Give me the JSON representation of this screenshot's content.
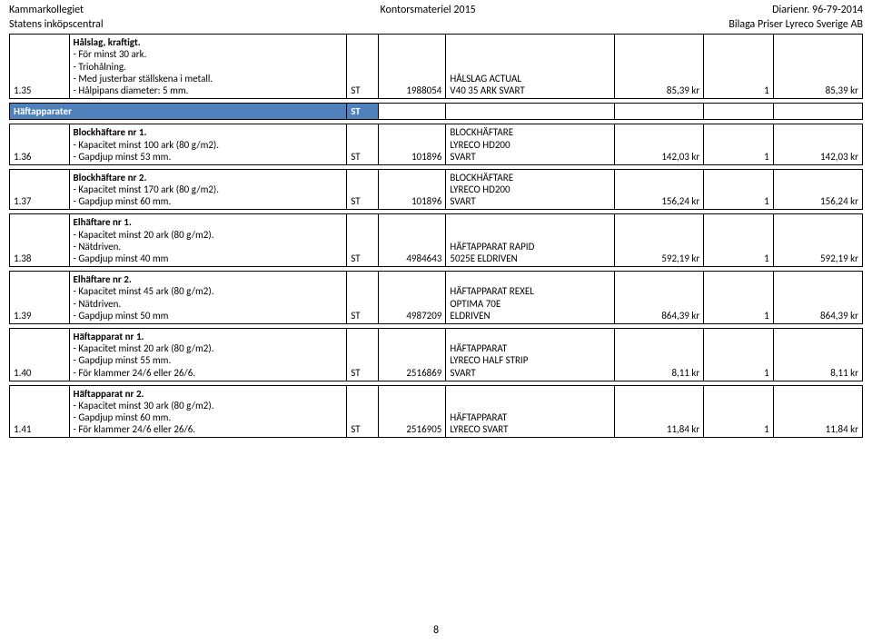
{
  "header": {
    "topLeft1": "Kammarkollegiet",
    "topLeft2": "Statens inköpscentral",
    "topCenter": "Kontorsmateriel 2015",
    "topRight1": "Diarienr.  96-79-2014",
    "topRight2": "Bilaga Priser Lyreco Sverige AB"
  },
  "sectionLabel": "Häftapparater",
  "sectionUnit": "ST",
  "rows": [
    {
      "id": "1.35",
      "title": "Hålslag, kraftigt.",
      "lines": "- För minst 30 ark.\n- Triohålning.\n- Med justerbar ställskena i metall.\n- Hålpipans diameter: 5 mm.",
      "unit": "ST",
      "art": "1988054",
      "prod": "HÅLSLAG ACTUAL\nV40 35 ARK SVART",
      "p1": "85,39 kr",
      "qty": "1",
      "p2": "85,39 kr"
    },
    {
      "id": "1.36",
      "title": "Blockhäftare nr 1.",
      "lines": "- Kapacitet minst 100 ark (80 g/m2).\n- Gapdjup minst 53 mm.",
      "unit": "ST",
      "art": "101896",
      "prod": "BLOCKHÄFTARE\nLYRECO HD200\nSVART",
      "p1": "142,03 kr",
      "qty": "1",
      "p2": "142,03 kr"
    },
    {
      "id": "1.37",
      "title": "Blockhäftare nr 2.",
      "lines": "- Kapacitet minst 170 ark (80 g/m2).\n- Gapdjup minst 60 mm.",
      "unit": "ST",
      "art": "101896",
      "prod": "BLOCKHÄFTARE\nLYRECO HD200\nSVART",
      "p1": "156,24 kr",
      "qty": "1",
      "p2": "156,24 kr"
    },
    {
      "id": "1.38",
      "title": "Elhäftare nr 1.",
      "lines": "- Kapacitet minst 20 ark (80 g/m2).\n- Nätdriven.\n- Gapdjup minst 40 mm",
      "unit": "ST",
      "art": "4984643",
      "prod": "HÄFTAPPARAT RAPID\n5025E ELDRIVEN",
      "p1": "592,19 kr",
      "qty": "1",
      "p2": "592,19 kr"
    },
    {
      "id": "1.39",
      "title": "Elhäftare nr 2.",
      "lines": "- Kapacitet minst 45 ark (80 g/m2).\n- Nätdriven.\n- Gapdjup minst 50 mm",
      "unit": "ST",
      "art": "4987209",
      "prod": "HÄFTAPPARAT REXEL\nOPTIMA 70E\nELDRIVEN",
      "p1": "864,39 kr",
      "qty": "1",
      "p2": "864,39 kr"
    },
    {
      "id": "1.40",
      "title": "Häftapparat nr 1.",
      "lines": "- Kapacitet minst 20 ark (80 g/m2).\n- Gapdjup minst 55 mm.\n- För klammer 24/6 eller 26/6.",
      "unit": "ST",
      "art": "2516869",
      "prod": "HÄFTAPPARAT\nLYRECO HALF STRIP\nSVART",
      "p1": "8,11 kr",
      "qty": "1",
      "p2": "8,11 kr"
    },
    {
      "id": "1.41",
      "title": "Häftapparat nr 2.",
      "lines": "- Kapacitet minst 30 ark (80 g/m2).\n- Gapdjup minst 60 mm.\n- För klammer 24/6 eller 26/6.",
      "unit": "ST",
      "art": "2516905",
      "prod": "HÄFTAPPARAT\nLYRECO SVART",
      "p1": "11,84 kr",
      "qty": "1",
      "p2": "11,84 kr"
    }
  ],
  "pageNumber": "8"
}
